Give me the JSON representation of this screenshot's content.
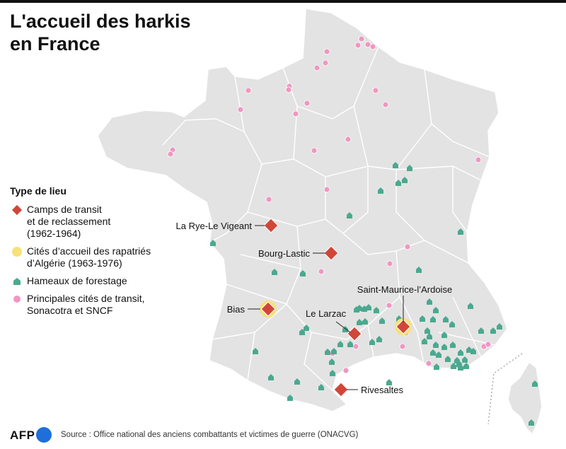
{
  "title": {
    "line1": "L'accueil des harkis",
    "line2": "en France"
  },
  "legend": {
    "title": "Type de lieu",
    "items": [
      {
        "key": "camp",
        "lines": [
          "Camps de transit",
          "et de reclassement",
          "(1962-1964)"
        ],
        "color": "#d0473a"
      },
      {
        "key": "cite",
        "lines": [
          "Cités d’accueil des rapatriés",
          "d’Algérie (1963-1976)"
        ],
        "color": "#f7e17a"
      },
      {
        "key": "hameau",
        "lines": [
          "Hameaux de forestage"
        ],
        "color": "#4aa98f"
      },
      {
        "key": "transit",
        "lines": [
          "Principales cités de transit,",
          "Sonacotra et SNCF"
        ],
        "color": "#ef97c2"
      }
    ]
  },
  "labels": {
    "rye": "La Rye-Le Vigeant",
    "bourg": "Bourg-Lastic",
    "saint_maurice": "Saint-Maurice-l’Ardoise",
    "bias": "Bias",
    "larzac": "Le Larzac",
    "rivesaltes": "Rivesaltes"
  },
  "footer": {
    "logo": "AFP",
    "source": "Source : Office national des anciens combattants et victimes de guerre (ONACVG)"
  },
  "colors": {
    "land": "#e3e3e3",
    "border": "#ffffff",
    "camp": "#d0473a",
    "cite": "#f7e17a",
    "hameau": "#4aa98f",
    "transit": "#ef97c2"
  }
}
